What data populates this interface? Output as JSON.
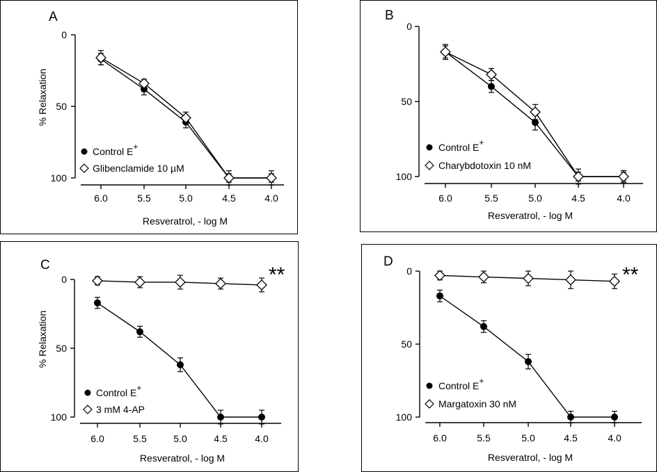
{
  "chart_data": [
    {
      "panel": "A",
      "type": "line",
      "xlabel": "Resveratrol, - log M",
      "ylabel": "% Relaxation",
      "x_ticks": [
        "6.0",
        "5.5",
        "5.0",
        "4.5",
        "4.0"
      ],
      "y_ticks": [
        "0",
        "50",
        "100"
      ],
      "y_inverted": true,
      "ylim": [
        0,
        100
      ],
      "xlim": [
        6.0,
        4.0
      ],
      "significance": "",
      "series": [
        {
          "name": "Control E",
          "marker": "filled-circle",
          "x": [
            6.0,
            5.5,
            5.0,
            4.5,
            4.0
          ],
          "y": [
            17,
            38,
            61,
            100,
            100
          ],
          "err": [
            4,
            4,
            4,
            3,
            3
          ]
        },
        {
          "name": "Glibenclamide 10 µM",
          "marker": "open-diamond",
          "x": [
            6.0,
            5.5,
            5.0,
            4.5,
            4.0
          ],
          "y": [
            16,
            34,
            58,
            100,
            100
          ],
          "err": [
            5,
            3,
            4,
            5,
            5
          ]
        }
      ]
    },
    {
      "panel": "B",
      "type": "line",
      "xlabel": "Resveratrol, - log M",
      "ylabel": "",
      "x_ticks": [
        "6.0",
        "5.5",
        "5.0",
        "4.5",
        "4.0"
      ],
      "y_ticks": [
        "0",
        "50",
        "100"
      ],
      "y_inverted": true,
      "ylim": [
        0,
        100
      ],
      "xlim": [
        6.0,
        4.0
      ],
      "significance": "",
      "series": [
        {
          "name": "Control E",
          "marker": "filled-circle",
          "x": [
            6.0,
            5.5,
            5.0,
            4.5,
            4.0
          ],
          "y": [
            17,
            40,
            64,
            100,
            100
          ],
          "err": [
            4,
            4,
            5,
            3,
            3
          ]
        },
        {
          "name": "Charybdotoxin 10 nM",
          "marker": "open-diamond",
          "x": [
            6.0,
            5.5,
            5.0,
            4.5,
            4.0
          ],
          "y": [
            17,
            32,
            57,
            100,
            100
          ],
          "err": [
            5,
            4,
            5,
            5,
            4
          ]
        }
      ]
    },
    {
      "panel": "C",
      "type": "line",
      "xlabel": "Resveratrol, - log M",
      "ylabel": "% Relaxation",
      "x_ticks": [
        "6.0",
        "5.5",
        "5.0",
        "4.5",
        "4.0"
      ],
      "y_ticks": [
        "0",
        "50",
        "100"
      ],
      "y_inverted": true,
      "ylim": [
        0,
        100
      ],
      "xlim": [
        6.0,
        4.0
      ],
      "significance": "**",
      "series": [
        {
          "name": "Control E",
          "marker": "filled-circle",
          "x": [
            6.0,
            5.5,
            5.0,
            4.5,
            4.0
          ],
          "y": [
            17,
            38,
            62,
            100,
            100
          ],
          "err": [
            4,
            4,
            5,
            5,
            5
          ]
        },
        {
          "name": "3 mM 4-AP",
          "marker": "open-diamond",
          "x": [
            6.0,
            5.5,
            5.0,
            4.5,
            4.0
          ],
          "y": [
            1,
            2,
            2,
            3,
            4
          ],
          "err": [
            3,
            4,
            5,
            4,
            5
          ]
        }
      ]
    },
    {
      "panel": "D",
      "type": "line",
      "xlabel": "Resveratrol, - log M",
      "ylabel": "",
      "x_ticks": [
        "6.0",
        "5.5",
        "5.0",
        "4.5",
        "4.0"
      ],
      "y_ticks": [
        "0",
        "50",
        "100"
      ],
      "y_inverted": true,
      "ylim": [
        0,
        100
      ],
      "xlim": [
        6.0,
        4.0
      ],
      "significance": "**",
      "series": [
        {
          "name": "Control E",
          "marker": "filled-circle",
          "x": [
            6.0,
            5.5,
            5.0,
            4.5,
            4.0
          ],
          "y": [
            17,
            38,
            62,
            100,
            100
          ],
          "err": [
            4,
            4,
            5,
            4,
            4
          ]
        },
        {
          "name": "Margatoxin 30 nM",
          "marker": "open-diamond",
          "x": [
            6.0,
            5.5,
            5.0,
            4.5,
            4.0
          ],
          "y": [
            3,
            4,
            5,
            6,
            7
          ],
          "err": [
            3,
            4,
            5,
            6,
            5
          ]
        }
      ]
    }
  ],
  "superscript": "+"
}
